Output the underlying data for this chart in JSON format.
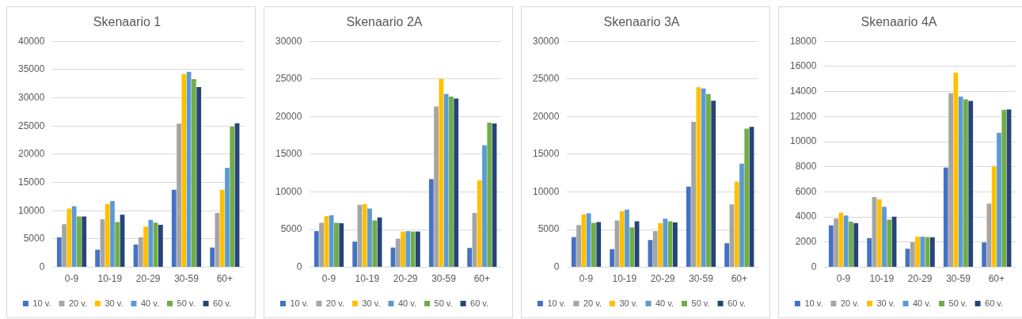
{
  "chart_data": [
    {
      "type": "bar",
      "title": "Skenaario 1",
      "categories": [
        "0-9",
        "10-19",
        "20-29",
        "30-59",
        "60+"
      ],
      "ylim": [
        0,
        40000
      ],
      "yticks": [
        0,
        5000,
        10000,
        15000,
        20000,
        25000,
        30000,
        35000,
        40000
      ],
      "grid": "y",
      "legend": "bottom",
      "series": [
        {
          "name": "10 v.",
          "color": "#4472c4",
          "values": [
            5300,
            3100,
            4000,
            13700,
            3500
          ]
        },
        {
          "name": "20 v.",
          "color": "#a5a5a5",
          "values": [
            7600,
            8500,
            5300,
            25400,
            9600
          ]
        },
        {
          "name": "30 v.",
          "color": "#ffc000",
          "values": [
            10400,
            11200,
            7200,
            34200,
            13700
          ]
        },
        {
          "name": "40 v.",
          "color": "#5b9bd5",
          "values": [
            10800,
            11700,
            8400,
            34600,
            17600
          ]
        },
        {
          "name": "50 v.",
          "color": "#70ad47",
          "values": [
            9000,
            8000,
            7900,
            33300,
            24900
          ]
        },
        {
          "name": "60 v.",
          "color": "#264478",
          "values": [
            9000,
            9300,
            7500,
            31900,
            25500
          ]
        }
      ]
    },
    {
      "type": "bar",
      "title": "Skenaario 2A",
      "categories": [
        "0-9",
        "10-19",
        "20-29",
        "30-59",
        "60+"
      ],
      "ylim": [
        0,
        30000
      ],
      "yticks": [
        0,
        5000,
        10000,
        15000,
        20000,
        25000,
        30000
      ],
      "grid": "y",
      "legend": "bottom",
      "series": [
        {
          "name": "10 v.",
          "color": "#4472c4",
          "values": [
            4800,
            3400,
            2600,
            11700,
            2550
          ]
        },
        {
          "name": "20 v.",
          "color": "#a5a5a5",
          "values": [
            5900,
            8300,
            3800,
            21350,
            7200
          ]
        },
        {
          "name": "30 v.",
          "color": "#ffc000",
          "values": [
            6800,
            8400,
            4750,
            25000,
            11550
          ]
        },
        {
          "name": "40 v.",
          "color": "#5b9bd5",
          "values": [
            6900,
            7800,
            4800,
            23000,
            16200
          ]
        },
        {
          "name": "50 v.",
          "color": "#70ad47",
          "values": [
            5900,
            6200,
            4750,
            22650,
            19200
          ]
        },
        {
          "name": "60 v.",
          "color": "#264478",
          "values": [
            5850,
            6600,
            4750,
            22400,
            19100
          ]
        }
      ]
    },
    {
      "type": "bar",
      "title": "Skenaario 3A",
      "categories": [
        "0-9",
        "10-19",
        "20-29",
        "30-59",
        "60+"
      ],
      "ylim": [
        0,
        30000
      ],
      "yticks": [
        0,
        5000,
        10000,
        15000,
        20000,
        25000,
        30000
      ],
      "grid": "y",
      "legend": "bottom",
      "series": [
        {
          "name": "10 v.",
          "color": "#4472c4",
          "values": [
            4000,
            2400,
            3600,
            10700,
            3200
          ]
        },
        {
          "name": "20 v.",
          "color": "#a5a5a5",
          "values": [
            5600,
            6200,
            4800,
            19300,
            8350
          ]
        },
        {
          "name": "30 v.",
          "color": "#ffc000",
          "values": [
            7000,
            7450,
            5850,
            23900,
            11350
          ]
        },
        {
          "name": "40 v.",
          "color": "#5b9bd5",
          "values": [
            7150,
            7650,
            6450,
            23750,
            13750
          ]
        },
        {
          "name": "50 v.",
          "color": "#70ad47",
          "values": [
            5900,
            5300,
            6100,
            23000,
            18400
          ]
        },
        {
          "name": "60 v.",
          "color": "#264478",
          "values": [
            6000,
            6100,
            5950,
            22100,
            18650
          ]
        }
      ]
    },
    {
      "type": "bar",
      "title": "Skenaario 4A",
      "categories": [
        "0-9",
        "10-19",
        "20-29",
        "30-59",
        "60+"
      ],
      "ylim": [
        0,
        18000
      ],
      "yticks": [
        0,
        2000,
        4000,
        6000,
        8000,
        10000,
        12000,
        14000,
        16000,
        18000
      ],
      "grid": "y",
      "legend": "bottom",
      "series": [
        {
          "name": "10 v.",
          "color": "#4472c4",
          "values": [
            3330,
            2320,
            1470,
            7940,
            1970
          ]
        },
        {
          "name": "20 v.",
          "color": "#a5a5a5",
          "values": [
            3880,
            5590,
            2000,
            13860,
            5070
          ]
        },
        {
          "name": "30 v.",
          "color": "#ffc000",
          "values": [
            4340,
            5420,
            2430,
            15500,
            8050
          ]
        },
        {
          "name": "40 v.",
          "color": "#5b9bd5",
          "values": [
            4120,
            4820,
            2430,
            13600,
            10720
          ]
        },
        {
          "name": "50 v.",
          "color": "#70ad47",
          "values": [
            3640,
            3790,
            2410,
            13380,
            12540
          ]
        },
        {
          "name": "60 v.",
          "color": "#264478",
          "values": [
            3510,
            4030,
            2390,
            13250,
            12570
          ]
        }
      ]
    }
  ]
}
